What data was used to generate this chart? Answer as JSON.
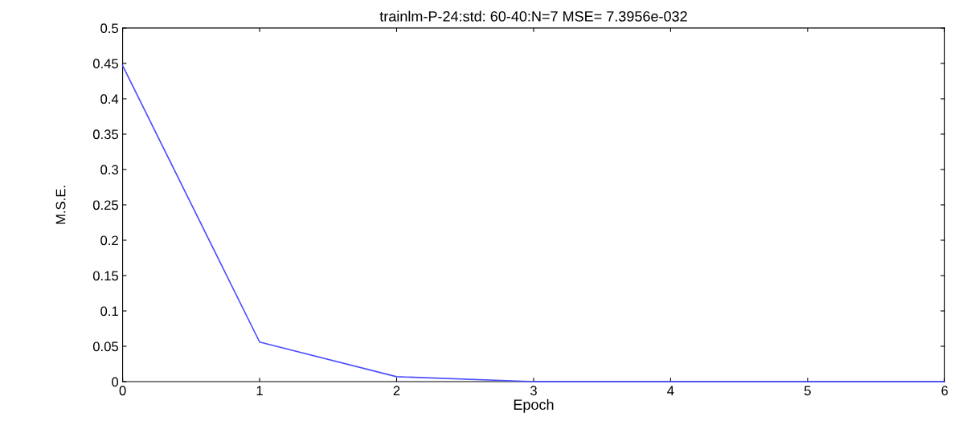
{
  "chart_data": {
    "type": "line",
    "title": "trainlm-P-24:std: 60-40:N=7 MSE= 7.3956e-032",
    "xlabel": "Epoch",
    "ylabel": "M.S.E.",
    "x": [
      0,
      1,
      2,
      3,
      4,
      5,
      6
    ],
    "series": [
      {
        "color": "#4d4dff",
        "values": [
          0.447,
          0.056,
          0.007,
          0.0,
          0.0,
          0.0,
          0.0
        ]
      }
    ],
    "xlim": [
      0,
      6
    ],
    "ylim": [
      0,
      0.5
    ],
    "xticks": [
      0,
      1,
      2,
      3,
      4,
      5,
      6
    ],
    "yticks": [
      0,
      0.05,
      0.1,
      0.15,
      0.2,
      0.25,
      0.3,
      0.35,
      0.4,
      0.45,
      0.5
    ],
    "grid": false,
    "legend": false,
    "marker": "none",
    "line_style": "solid"
  }
}
